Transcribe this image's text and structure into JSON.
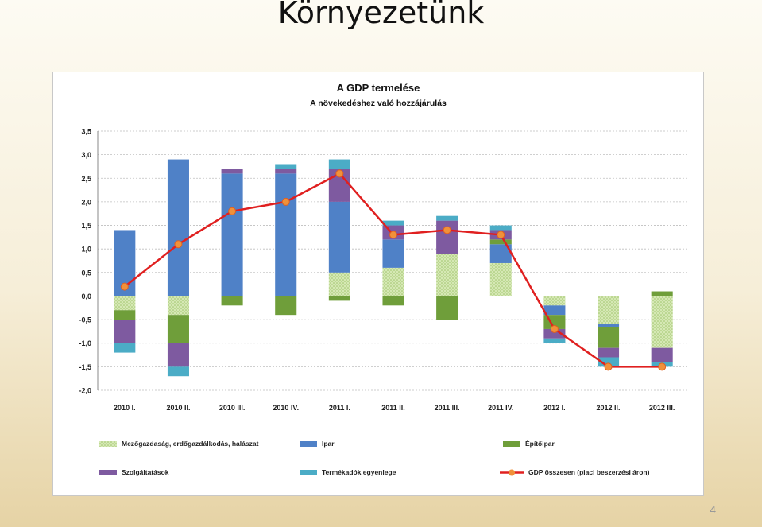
{
  "slide": {
    "title": "Környezetünk",
    "page_number": "4"
  },
  "chart_data": {
    "type": "bar",
    "stacked": true,
    "title": "A GDP termelése",
    "subtitle": "A növekedéshez való hozzájárulás",
    "categories": [
      "2010 I.",
      "2010 II.",
      "2010 III.",
      "2010 IV.",
      "2011 I.",
      "2011 II.",
      "2011 III.",
      "2011 IV.",
      "2012 I.",
      "2012 II.",
      "2012 III."
    ],
    "ylim": [
      -2.0,
      3.5
    ],
    "yticks": [
      "3,5",
      "3,0",
      "2,5",
      "2,0",
      "1,5",
      "1,0",
      "0,5",
      "0,0",
      "-0,5",
      "-1,0",
      "-1,5",
      "-2,0"
    ],
    "ytick_values": [
      3.5,
      3.0,
      2.5,
      2.0,
      1.5,
      1.0,
      0.5,
      0.0,
      -0.5,
      -1.0,
      -1.5,
      -2.0
    ],
    "grid": true,
    "legend_position": "bottom",
    "series": [
      {
        "name": "Mezőgazdaság, erdőgazdálkodás, halászat",
        "color": "#c4dd9a",
        "pattern": "dots",
        "values": [
          -0.3,
          -0.4,
          0.0,
          0.0,
          0.5,
          0.6,
          0.9,
          0.7,
          -0.2,
          -0.6,
          -1.1
        ]
      },
      {
        "name": "Ipar",
        "color": "#4f81c7",
        "pattern": "solid",
        "values": [
          1.4,
          2.9,
          2.6,
          2.6,
          1.5,
          0.6,
          0.0,
          0.4,
          -0.2,
          -0.05,
          0.0
        ]
      },
      {
        "name": "Építőipar",
        "color": "#6f9e3a",
        "pattern": "solid",
        "values": [
          -0.2,
          -0.6,
          -0.2,
          -0.4,
          -0.1,
          -0.2,
          -0.5,
          0.1,
          -0.3,
          -0.45,
          0.1
        ]
      },
      {
        "name": "Szolgáltatások",
        "color": "#7e5aa0",
        "pattern": "solid",
        "values": [
          -0.5,
          -0.5,
          0.1,
          0.1,
          0.7,
          0.3,
          0.7,
          0.2,
          -0.2,
          -0.2,
          -0.3
        ]
      },
      {
        "name": "Termékadók egyenlege",
        "color": "#4bacc6",
        "pattern": "solid",
        "values": [
          -0.2,
          -0.2,
          0.0,
          0.1,
          0.2,
          0.1,
          0.1,
          0.1,
          -0.1,
          -0.2,
          -0.1
        ]
      }
    ],
    "line_series": {
      "name": "GDP összesen (piaci beszerzési áron)",
      "color": "#e02020",
      "marker_color": "#f0913a",
      "values": [
        0.2,
        1.1,
        1.8,
        2.0,
        2.6,
        1.3,
        1.4,
        1.3,
        -0.7,
        -1.5,
        -1.5
      ]
    }
  }
}
